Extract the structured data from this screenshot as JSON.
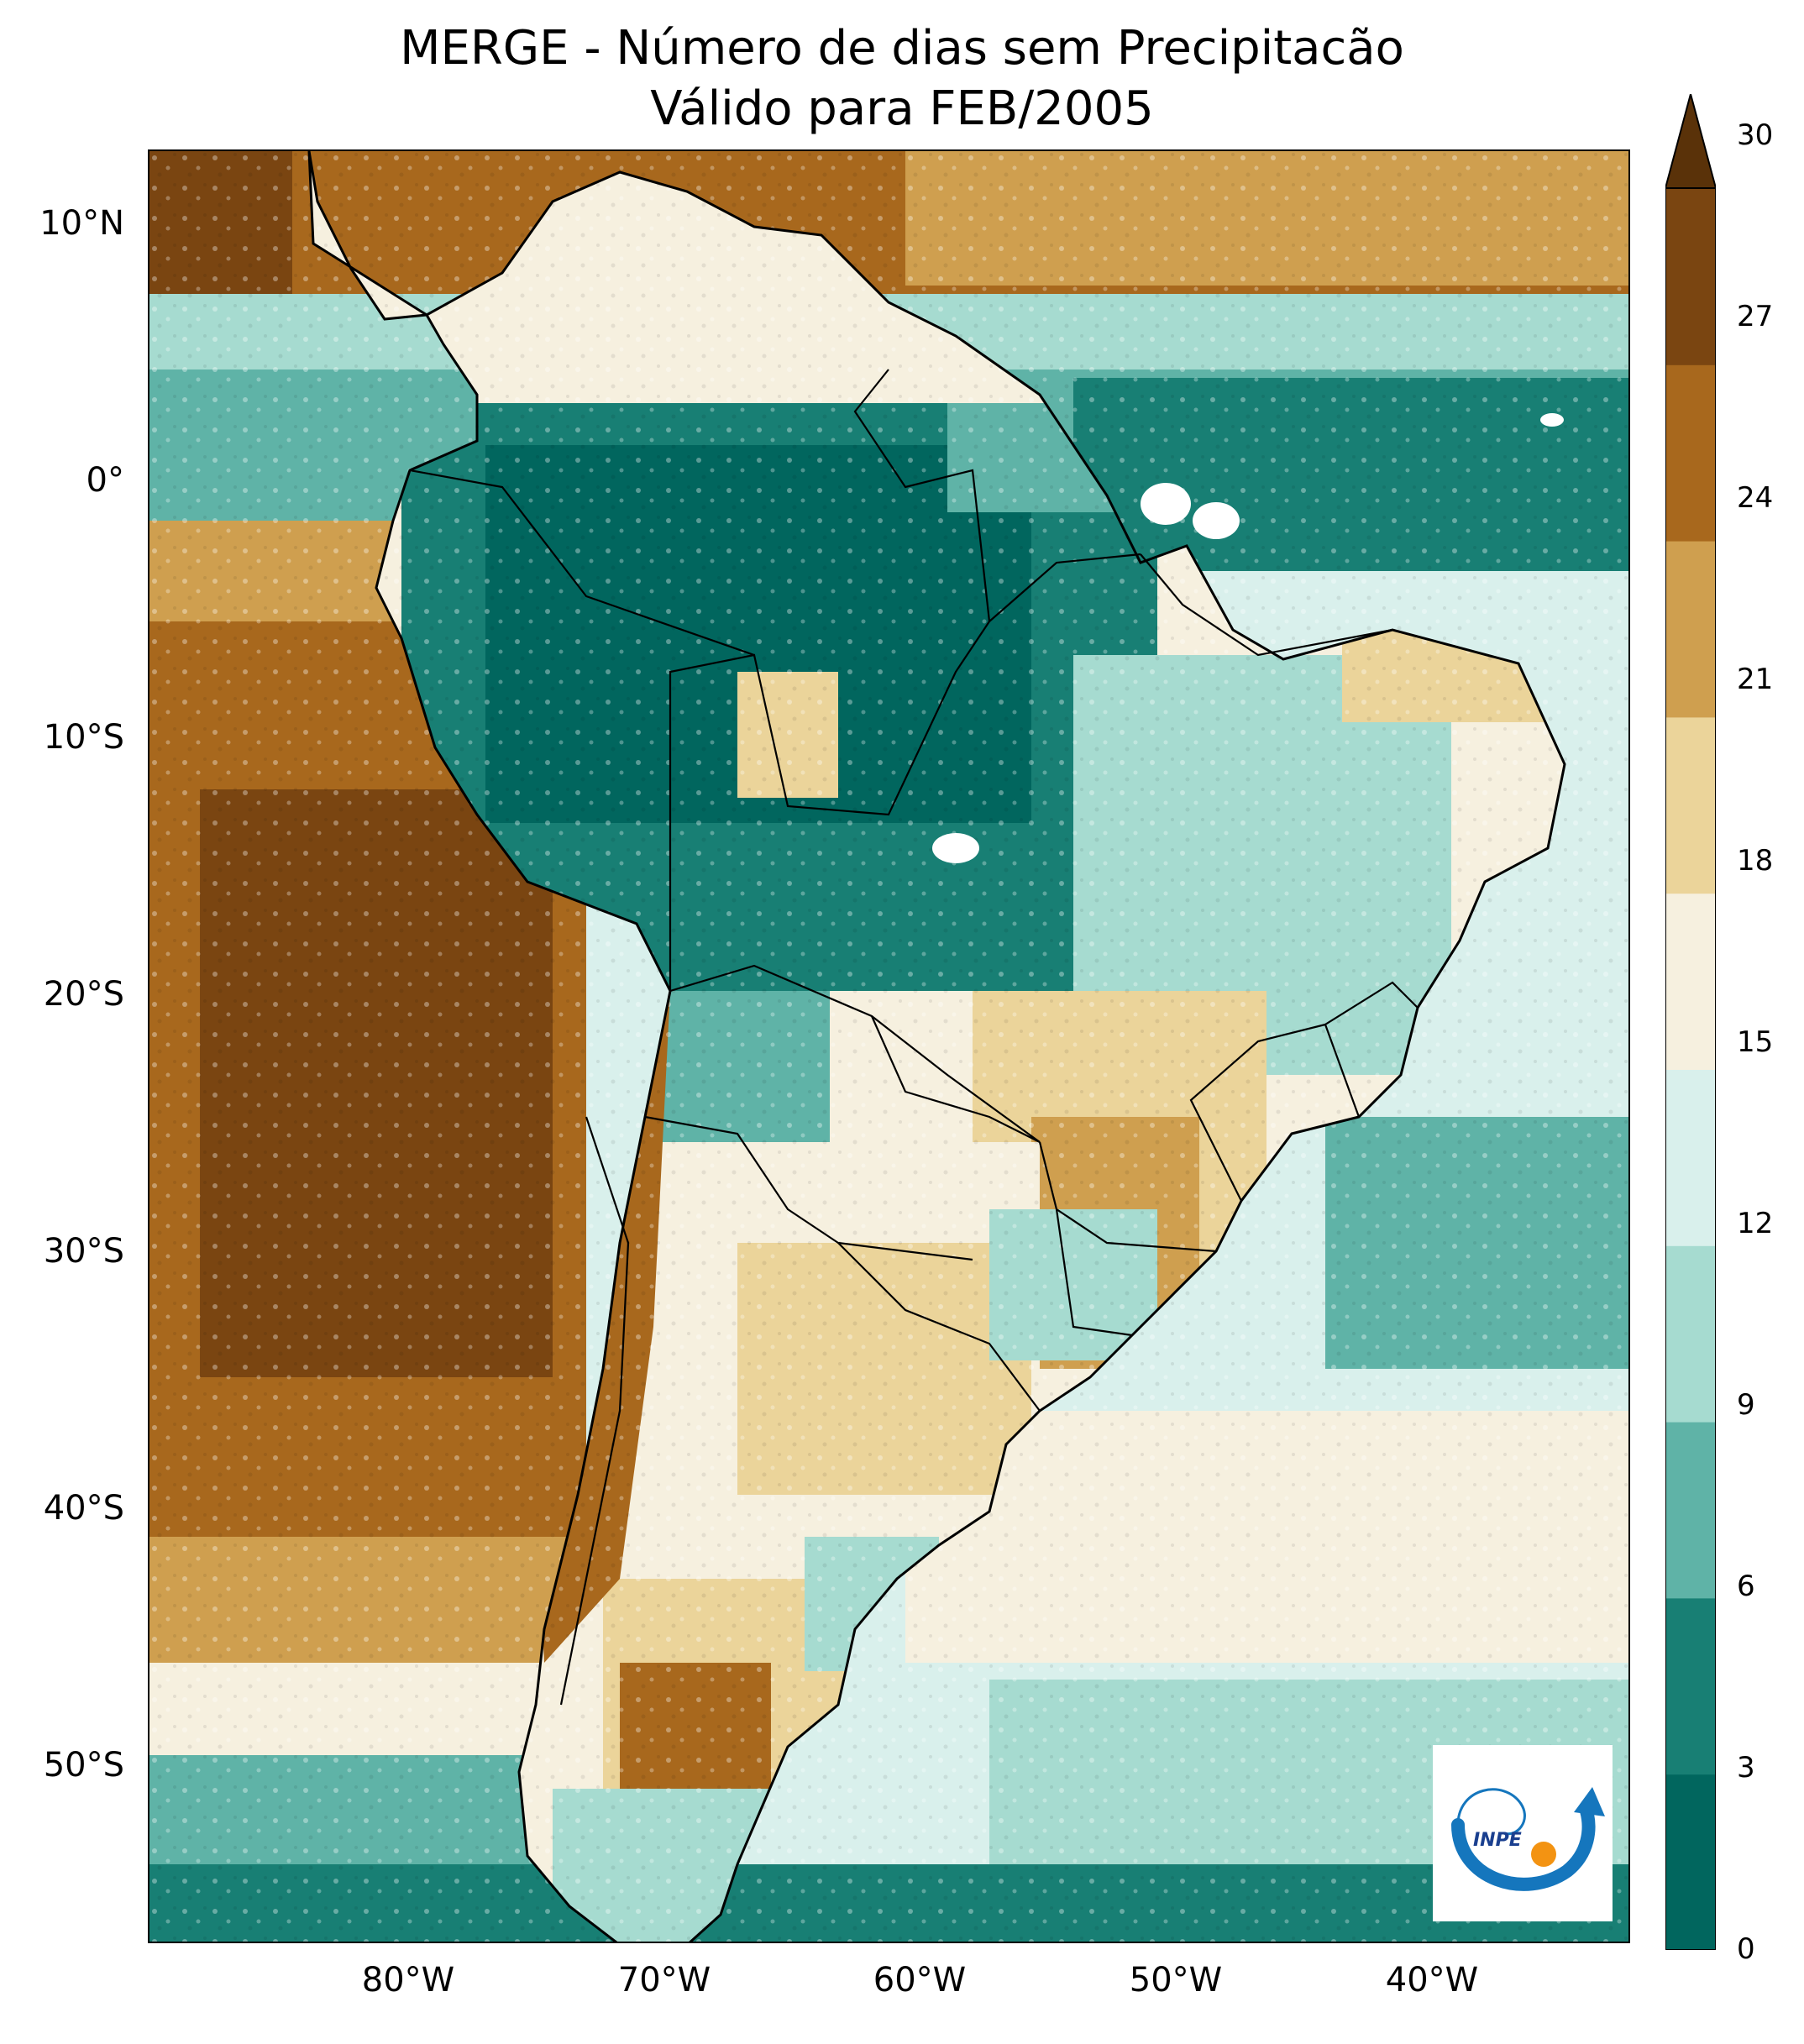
{
  "title": {
    "line1": "MERGE - Número de dias sem Precipitacão",
    "line2": "Válido para FEB/2005"
  },
  "map": {
    "latitude_labels": [
      "10°N",
      "0°",
      "10°S",
      "20°S",
      "30°S",
      "40°S",
      "50°S"
    ],
    "longitude_labels": [
      "80°W",
      "70°W",
      "60°W",
      "50°W",
      "40°W"
    ],
    "lon_range": [
      -90,
      -32
    ],
    "lat_range": [
      -56,
      13
    ],
    "ocean_pattern": "bands of dry (brown) offshore Pacific, wet (teal) equatorial Atlantic, mixed cream/teal South Atlantic",
    "colors": {
      "boundary": "#000000",
      "no_data": "#ffffff"
    }
  },
  "colorbar": {
    "ticks": [
      "0",
      "3",
      "6",
      "9",
      "12",
      "15",
      "18",
      "21",
      "24",
      "27",
      "30"
    ],
    "colors": [
      "#01665e",
      "#187f74",
      "#5fb3a7",
      "#a6dbd0",
      "#d9f0ec",
      "#f6f0df",
      "#ebd49a",
      "#cf9f4f",
      "#a8681d",
      "#7a4511",
      "#5a3209"
    ],
    "extend": "max"
  },
  "logo": {
    "text": "INPE",
    "colors": {
      "arc": "#1576bd",
      "dot": "#f39312"
    }
  }
}
